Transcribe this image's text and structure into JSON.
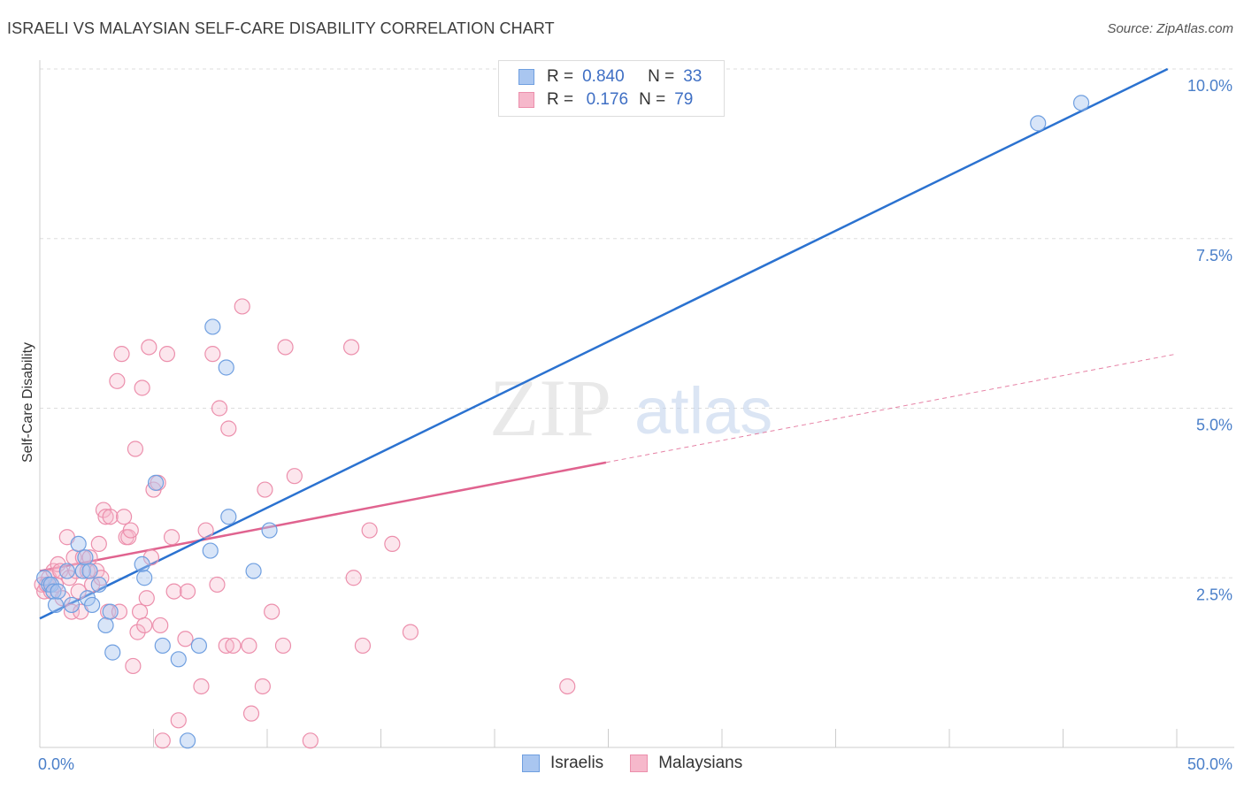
{
  "title": "ISRAELI VS MALAYSIAN SELF-CARE DISABILITY CORRELATION CHART",
  "source": "Source: ZipAtlas.com",
  "legend": {
    "rows": [
      {
        "r_label": "R =",
        "r_value": "0.840",
        "n_label": "N =",
        "n_value": "33"
      },
      {
        "r_label": "R =",
        "r_value": "0.176",
        "n_label": "N =",
        "n_value": "79"
      }
    ]
  },
  "bottom_legend": [
    "Israelis",
    "Malaysians"
  ],
  "watermark": {
    "zip": "ZIP",
    "atlas": "atlas"
  },
  "colors": {
    "israelis_fill": "#a9c6f0",
    "israelis_stroke": "#6f9fe0",
    "israelis_line": "#2b72d0",
    "malaysians_fill": "#f6b8cb",
    "malaysians_stroke": "#ec8fac",
    "malaysians_line": "#e0638f",
    "tick_text": "#4a7fc9",
    "grid": "#dddddd"
  },
  "chart_data": {
    "type": "scatter",
    "title": "ISRAELI VS MALAYSIAN SELF-CARE DISABILITY CORRELATION CHART",
    "xlabel": "",
    "ylabel": "Self-Care Disability",
    "xlim": [
      0,
      50
    ],
    "ylim": [
      0,
      10
    ],
    "x_tick_labels": [
      {
        "value": 0,
        "label": "0.0%"
      },
      {
        "value": 50,
        "label": "50.0%"
      }
    ],
    "y_tick_labels": [
      {
        "value": 2.5,
        "label": "2.5%"
      },
      {
        "value": 5.0,
        "label": "5.0%"
      },
      {
        "value": 7.5,
        "label": "7.5%"
      },
      {
        "value": 10.0,
        "label": "10.0%"
      }
    ],
    "grid": true,
    "legend_position": "top-center",
    "series": [
      {
        "name": "Israelis",
        "r": 0.84,
        "n": 33,
        "trend": {
          "x": [
            0,
            49.6
          ],
          "y": [
            1.9,
            10.0
          ]
        },
        "points": [
          [
            0.2,
            2.5
          ],
          [
            0.4,
            2.4
          ],
          [
            0.5,
            2.4
          ],
          [
            0.6,
            2.3
          ],
          [
            0.7,
            2.1
          ],
          [
            0.8,
            2.3
          ],
          [
            1.2,
            2.6
          ],
          [
            1.4,
            2.1
          ],
          [
            1.7,
            3.0
          ],
          [
            1.9,
            2.6
          ],
          [
            2.0,
            2.8
          ],
          [
            2.1,
            2.2
          ],
          [
            2.2,
            2.6
          ],
          [
            2.3,
            2.1
          ],
          [
            2.6,
            2.4
          ],
          [
            2.9,
            1.8
          ],
          [
            3.1,
            2.0
          ],
          [
            3.2,
            1.4
          ],
          [
            4.5,
            2.7
          ],
          [
            4.6,
            2.5
          ],
          [
            5.1,
            3.9
          ],
          [
            5.4,
            1.5
          ],
          [
            6.1,
            1.3
          ],
          [
            6.5,
            0.1
          ],
          [
            7.0,
            1.5
          ],
          [
            7.5,
            2.9
          ],
          [
            7.6,
            6.2
          ],
          [
            8.2,
            5.6
          ],
          [
            8.3,
            3.4
          ],
          [
            9.4,
            2.6
          ],
          [
            10.1,
            3.2
          ],
          [
            43.9,
            9.2
          ],
          [
            45.8,
            9.5
          ]
        ]
      },
      {
        "name": "Malaysians",
        "r": 0.176,
        "n": 79,
        "trend": {
          "x": [
            0,
            24.9
          ],
          "y": [
            2.6,
            4.2
          ]
        },
        "trend_extension": {
          "x": [
            24.9,
            50
          ],
          "y": [
            4.2,
            5.8
          ]
        },
        "points": [
          [
            0.1,
            2.4
          ],
          [
            0.2,
            2.3
          ],
          [
            0.3,
            2.4
          ],
          [
            0.4,
            2.5
          ],
          [
            0.5,
            2.3
          ],
          [
            0.6,
            2.6
          ],
          [
            0.7,
            2.4
          ],
          [
            0.8,
            2.7
          ],
          [
            0.9,
            2.6
          ],
          [
            1.0,
            2.2
          ],
          [
            1.2,
            3.1
          ],
          [
            1.3,
            2.5
          ],
          [
            1.4,
            2.0
          ],
          [
            1.5,
            2.8
          ],
          [
            1.6,
            2.6
          ],
          [
            1.7,
            2.3
          ],
          [
            1.8,
            2.0
          ],
          [
            1.9,
            2.8
          ],
          [
            2.1,
            2.6
          ],
          [
            2.2,
            2.8
          ],
          [
            2.3,
            2.4
          ],
          [
            2.5,
            2.6
          ],
          [
            2.6,
            3.0
          ],
          [
            2.7,
            2.5
          ],
          [
            2.8,
            3.5
          ],
          [
            2.9,
            3.4
          ],
          [
            3.0,
            2.0
          ],
          [
            3.1,
            3.4
          ],
          [
            3.4,
            5.4
          ],
          [
            3.5,
            2.0
          ],
          [
            3.6,
            5.8
          ],
          [
            3.7,
            3.4
          ],
          [
            3.8,
            3.1
          ],
          [
            3.9,
            3.1
          ],
          [
            4.0,
            3.2
          ],
          [
            4.1,
            1.2
          ],
          [
            4.2,
            4.4
          ],
          [
            4.3,
            1.7
          ],
          [
            4.4,
            2.0
          ],
          [
            4.5,
            5.3
          ],
          [
            4.6,
            1.8
          ],
          [
            4.7,
            2.2
          ],
          [
            4.8,
            5.9
          ],
          [
            4.9,
            2.8
          ],
          [
            5.0,
            3.8
          ],
          [
            5.2,
            3.9
          ],
          [
            5.3,
            1.8
          ],
          [
            5.4,
            0.1
          ],
          [
            5.6,
            5.8
          ],
          [
            5.8,
            3.1
          ],
          [
            5.9,
            2.3
          ],
          [
            6.1,
            0.4
          ],
          [
            6.4,
            1.6
          ],
          [
            6.5,
            2.3
          ],
          [
            7.1,
            0.9
          ],
          [
            7.3,
            3.2
          ],
          [
            7.6,
            5.8
          ],
          [
            7.8,
            2.4
          ],
          [
            7.9,
            5.0
          ],
          [
            8.2,
            1.5
          ],
          [
            8.3,
            4.7
          ],
          [
            8.5,
            1.5
          ],
          [
            8.9,
            6.5
          ],
          [
            9.2,
            1.5
          ],
          [
            9.3,
            0.5
          ],
          [
            9.8,
            0.9
          ],
          [
            9.9,
            3.8
          ],
          [
            10.2,
            2.0
          ],
          [
            10.7,
            1.5
          ],
          [
            10.8,
            5.9
          ],
          [
            11.2,
            4.0
          ],
          [
            11.9,
            0.1
          ],
          [
            13.7,
            5.9
          ],
          [
            13.8,
            2.5
          ],
          [
            14.2,
            1.5
          ],
          [
            14.5,
            3.2
          ],
          [
            15.5,
            3.0
          ],
          [
            16.3,
            1.7
          ],
          [
            23.2,
            0.9
          ]
        ]
      }
    ]
  }
}
